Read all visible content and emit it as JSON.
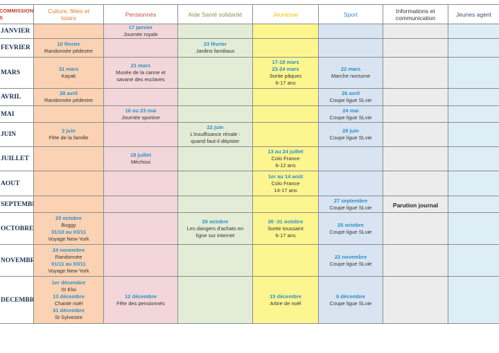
{
  "headers": [
    "COMMISSIONS\nS",
    "Culture, fêtes et\nloisirs",
    "Pensionnés",
    "Aide Santé solidarité",
    "Jeunesse",
    "Sport",
    "Informations et\ncommunication",
    "Jeunes agent"
  ],
  "header_colors": [
    "#c0392b",
    "#e07b2a",
    "#c0504d",
    "#7f9a4f",
    "#f2c200",
    "#3f82c4",
    "#333333",
    "#3d4f73"
  ],
  "rows": [
    {
      "month": "JANVIER",
      "cells": [
        [],
        [
          [
            "17 janvier",
            "d"
          ],
          [
            "Journée royale",
            "t"
          ]
        ],
        [],
        [],
        [],
        [],
        []
      ]
    },
    {
      "month": "FEVRIER",
      "cells": [
        [
          [
            "10 février",
            "d"
          ],
          [
            "Randonnée pédestre",
            "t"
          ]
        ],
        [],
        [
          [
            "23 février",
            "d"
          ],
          [
            "Jardins familiaux",
            "t"
          ]
        ],
        [],
        [],
        [],
        []
      ]
    },
    {
      "month": "MARS",
      "cells": [
        [
          [
            "31 mars",
            "d"
          ],
          [
            "Kayak",
            "t"
          ]
        ],
        [
          [
            "21 mars",
            "d"
          ],
          [
            "Musée de la canne et",
            "t"
          ],
          [
            "savane des esclaves",
            "t"
          ]
        ],
        [],
        [
          [
            "17-18 mars",
            "d"
          ],
          [
            "23-24 mars",
            "d"
          ],
          [
            "Sortie pâques",
            "t"
          ],
          [
            "6-17 ans",
            "t"
          ]
        ],
        [
          [
            "22 mars",
            "d"
          ],
          [
            "Marche nocturne",
            "t"
          ]
        ],
        [],
        []
      ]
    },
    {
      "month": "AVRIL",
      "cells": [
        [
          [
            "28 avril",
            "d"
          ],
          [
            "Randonnée pédestre",
            "t"
          ]
        ],
        [],
        [],
        [],
        [
          [
            "26 avril",
            "d"
          ],
          [
            "Coupe ligue SLvie",
            "t"
          ]
        ],
        [],
        []
      ]
    },
    {
      "month": "MAI",
      "cells": [
        [],
        [
          [
            "16 ou 23 mai",
            "d"
          ],
          [
            "Journée sportive",
            "t"
          ]
        ],
        [],
        [],
        [
          [
            "24 mai",
            "d"
          ],
          [
            "Coupe ligue SLvie",
            "t"
          ]
        ],
        [],
        []
      ]
    },
    {
      "month": "JUIN",
      "cells": [
        [
          [
            "2 juin",
            "d"
          ],
          [
            "Fête de la famille",
            "t"
          ]
        ],
        [],
        [
          [
            "22 juin",
            "d"
          ],
          [
            "L'insuffisance rénale :",
            "t"
          ],
          [
            "quand faut-il dépister",
            "t"
          ]
        ],
        [],
        [
          [
            "28 juin",
            "d"
          ],
          [
            "Coupe ligue SLvie",
            "t"
          ]
        ],
        [],
        []
      ]
    },
    {
      "month": "JUILLET",
      "cells": [
        [],
        [
          [
            "18 juillet",
            "d"
          ],
          [
            "Méchoui",
            "t"
          ]
        ],
        [],
        [
          [
            "13 au 24 juillet",
            "d"
          ],
          [
            "Colo France",
            "t"
          ],
          [
            "6-12 ans",
            "t"
          ]
        ],
        [],
        [],
        []
      ]
    },
    {
      "month": "AOUT",
      "cells": [
        [],
        [],
        [],
        [
          [
            "1er au 14 août",
            "d"
          ],
          [
            "Colo France",
            "t"
          ],
          [
            "14-17 ans",
            "t"
          ]
        ],
        [],
        [],
        []
      ]
    },
    {
      "month": "SEPTEMBRE",
      "cells": [
        [],
        [],
        [],
        [],
        [
          [
            "27 septembre",
            "d"
          ],
          [
            "Coupe ligue SLvie",
            "t"
          ]
        ],
        [
          [
            "Parution journal",
            "p"
          ]
        ],
        []
      ]
    },
    {
      "month": "OCTOBRE",
      "cells": [
        [
          [
            "20 octobre",
            "d"
          ],
          [
            "Buggy",
            "t"
          ],
          [
            "31/10 au 03/11",
            "d"
          ],
          [
            "Voyage New-York",
            "t"
          ]
        ],
        [],
        [
          [
            "26 octobre",
            "d"
          ],
          [
            "Les dangers d'achats en",
            "t"
          ],
          [
            "ligne sur internet",
            "t"
          ]
        ],
        [
          [
            "30 -31 octobre",
            "d"
          ],
          [
            "Sortie toussaint",
            "t"
          ],
          [
            "6-17 ans",
            "t"
          ]
        ],
        [
          [
            "25 octobre",
            "d"
          ],
          [
            "Coupe ligue SLvie",
            "t"
          ]
        ],
        [],
        []
      ]
    },
    {
      "month": "NOVEMBRE",
      "cells": [
        [
          [
            "24 novembre",
            "d"
          ],
          [
            "Randonnée",
            "t"
          ],
          [
            "01/11 au 03/11",
            "d"
          ],
          [
            "Voyage New-York",
            "t"
          ]
        ],
        [],
        [],
        [],
        [
          [
            "22 novembre",
            "d"
          ],
          [
            "Coupe ligue SLvie",
            "t"
          ]
        ],
        [],
        []
      ]
    },
    {
      "month": "DECEMBRE",
      "cells": [
        [
          [
            "1er décembre",
            "d"
          ],
          [
            "St Eloi",
            "t"
          ],
          [
            "13 décembre",
            "d"
          ],
          [
            "Chanté noël",
            "t"
          ],
          [
            "31 décembre",
            "d"
          ],
          [
            "St Sylvestre",
            "t"
          ]
        ],
        [
          [
            "12 décembre",
            "d"
          ],
          [
            "Fête des pensionnés",
            "t"
          ]
        ],
        [],
        [
          [
            "15 décembre",
            "d"
          ],
          [
            "Arbre de noël",
            "t"
          ]
        ],
        [
          [
            "6 décembre",
            "d"
          ],
          [
            "Coupe ligue SLvie",
            "t"
          ]
        ],
        [],
        []
      ]
    }
  ]
}
